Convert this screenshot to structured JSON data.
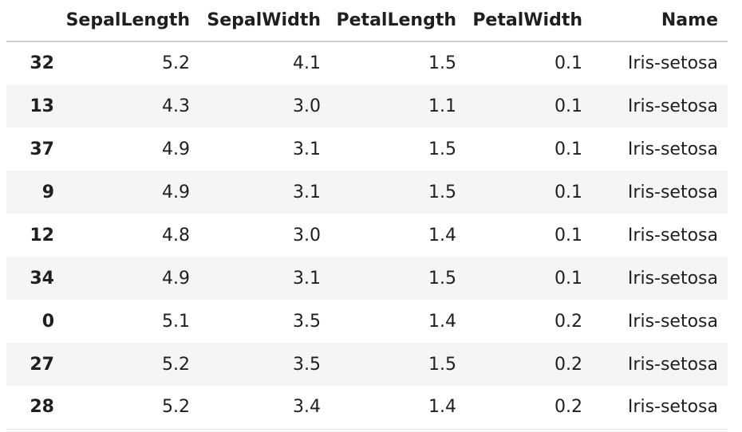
{
  "table": {
    "columns": [
      "",
      "SepalLength",
      "SepalWidth",
      "PetalLength",
      "PetalWidth",
      "Name"
    ],
    "rows": [
      {
        "index": "32",
        "cells": [
          "5.2",
          "4.1",
          "1.5",
          "0.1",
          "Iris-setosa"
        ]
      },
      {
        "index": "13",
        "cells": [
          "4.3",
          "3.0",
          "1.1",
          "0.1",
          "Iris-setosa"
        ]
      },
      {
        "index": "37",
        "cells": [
          "4.9",
          "3.1",
          "1.5",
          "0.1",
          "Iris-setosa"
        ]
      },
      {
        "index": "9",
        "cells": [
          "4.9",
          "3.1",
          "1.5",
          "0.1",
          "Iris-setosa"
        ]
      },
      {
        "index": "12",
        "cells": [
          "4.8",
          "3.0",
          "1.4",
          "0.1",
          "Iris-setosa"
        ]
      },
      {
        "index": "34",
        "cells": [
          "4.9",
          "3.1",
          "1.5",
          "0.1",
          "Iris-setosa"
        ]
      },
      {
        "index": "0",
        "cells": [
          "5.1",
          "3.5",
          "1.4",
          "0.2",
          "Iris-setosa"
        ]
      },
      {
        "index": "27",
        "cells": [
          "5.2",
          "3.5",
          "1.5",
          "0.2",
          "Iris-setosa"
        ]
      },
      {
        "index": "28",
        "cells": [
          "5.2",
          "3.4",
          "1.4",
          "0.2",
          "Iris-setosa"
        ]
      }
    ]
  }
}
